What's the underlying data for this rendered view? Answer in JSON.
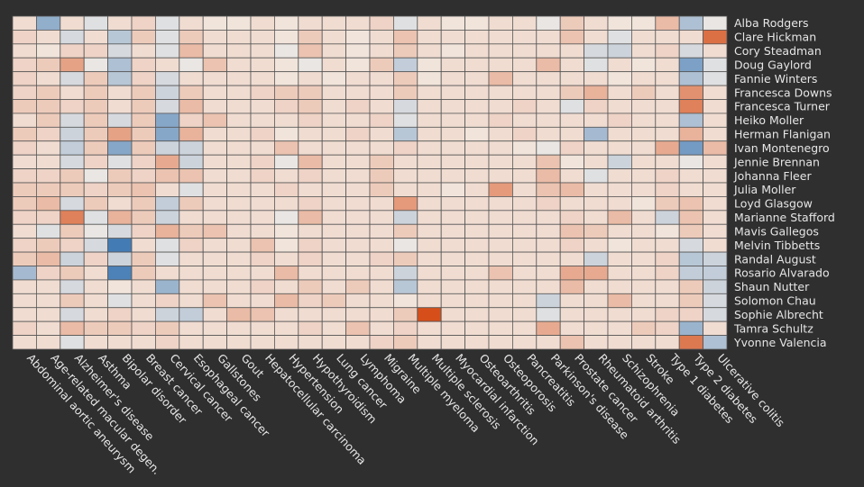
{
  "chart_data": {
    "type": "heatmap",
    "title": "",
    "xlabel": "",
    "ylabel": "",
    "legend": "none",
    "grid": true,
    "value_range": [
      -1,
      1
    ],
    "colors": {
      "background": "#2f2f2f",
      "grid_line": "#555555",
      "label": "#e6e6e6",
      "negative_strong": "#2f6fb0",
      "neutral": "#f3ece6",
      "positive_strong": "#d4470f"
    },
    "columns": [
      "Abdominal aortic aneurysm",
      "Age-related macular degen.",
      "Alzheimer's disease",
      "Asthma",
      "Bipolar disorder",
      "Breast cancer",
      "Cervical cancer",
      "Esophageal cancer",
      "Gallstones",
      "Gout",
      "Hepatocellular carcinoma",
      "Hypertension",
      "Hypothyroidism",
      "Lung cancer",
      "Lymphoma",
      "Migraine",
      "Multiple myeloma",
      "Multiple sclerosis",
      "Myocardial infarction",
      "Osteoarthritis",
      "Osteoporosis",
      "Pancreatitis",
      "Parkinson's disease",
      "Prostate cancer",
      "Rheumatoid arthritis",
      "Schizophrenia",
      "Stroke",
      "Type 1 diabetes",
      "Type 2 diabetes",
      "Ulcerative colitis"
    ],
    "rows": [
      "Alba Rodgers",
      "Clare Hickman",
      "Cory Steadman",
      "Doug Gaylord",
      "Fannie Winters",
      "Francesca Downs",
      "Francesca Turner",
      "Heiko Moller",
      "Herman Flanigan",
      "Ivan Montenegro",
      "Jennie Brennan",
      "Johanna Fleer",
      "Julia Moller",
      "Loyd Glasgow",
      "Marianne Stafford",
      "Mavis Gallegos",
      "Melvin Tibbetts",
      "Randal August",
      "Rosario Alvarado",
      "Shaun Nutter",
      "Solomon Chau",
      "Sophie Albrecht",
      "Tamra Schultz",
      "Yvonne Valencia"
    ],
    "values": [
      [
        0.1,
        -0.5,
        0.1,
        -0.1,
        0.1,
        0.15,
        -0.1,
        0.1,
        0.05,
        0.05,
        0.1,
        0.05,
        0.1,
        0.1,
        0.1,
        0.15,
        -0.1,
        0.1,
        0.05,
        0.05,
        0.1,
        0.1,
        -0.05,
        0.2,
        0.1,
        0.05,
        0.05,
        0.3,
        -0.35,
        -0.05
      ],
      [
        0.15,
        0.1,
        -0.15,
        0.1,
        -0.3,
        0.2,
        -0.1,
        0.2,
        0.1,
        0.1,
        0.1,
        0.05,
        0.2,
        0.1,
        0.05,
        0.1,
        0.25,
        0.1,
        0.1,
        0.1,
        0.1,
        0.1,
        0.1,
        0.25,
        0.1,
        -0.1,
        0.1,
        0.1,
        0.1,
        0.75
      ],
      [
        0.1,
        0.05,
        0.15,
        0.15,
        -0.15,
        0.1,
        -0.1,
        0.3,
        0.1,
        0.1,
        0.1,
        -0.05,
        0.25,
        0.1,
        0.05,
        0.1,
        0.2,
        0.1,
        0.05,
        0.1,
        0.1,
        0.1,
        0.1,
        0.1,
        -0.15,
        -0.2,
        0.1,
        0.15,
        -0.15,
        0.1
      ],
      [
        0.15,
        0.2,
        0.45,
        -0.05,
        -0.35,
        0.15,
        0.1,
        -0.05,
        0.25,
        0.1,
        0.1,
        0.05,
        -0.05,
        0.1,
        0.05,
        0.2,
        -0.25,
        0.05,
        0.1,
        0.1,
        0.1,
        0.1,
        0.3,
        0.1,
        -0.1,
        0.1,
        0.05,
        0.1,
        -0.6,
        -0.1
      ],
      [
        0.15,
        0.1,
        -0.15,
        0.2,
        -0.3,
        0.15,
        -0.15,
        0.1,
        0.1,
        0.1,
        0.1,
        0.05,
        0.1,
        0.05,
        0.1,
        0.1,
        0.2,
        0.05,
        0.1,
        0.1,
        0.3,
        0.1,
        0.1,
        0.1,
        0.1,
        0.05,
        0.1,
        0.1,
        -0.35,
        -0.1
      ],
      [
        0.15,
        0.2,
        0.1,
        0.2,
        0.1,
        0.2,
        -0.2,
        0.2,
        0.1,
        0.1,
        0.15,
        0.2,
        0.2,
        0.1,
        0.1,
        0.1,
        0.2,
        0.1,
        0.1,
        0.1,
        0.1,
        0.1,
        0.1,
        0.2,
        0.35,
        0.1,
        0.2,
        0.1,
        0.55,
        0.1
      ],
      [
        0.2,
        0.2,
        0.15,
        0.2,
        0.1,
        0.2,
        -0.15,
        0.3,
        0.1,
        0.1,
        0.1,
        0.15,
        0.2,
        0.1,
        0.15,
        0.1,
        -0.15,
        0.1,
        0.1,
        0.1,
        0.1,
        0.15,
        0.1,
        -0.1,
        0.15,
        0.1,
        0.1,
        0.1,
        0.65,
        0.1
      ],
      [
        0.1,
        0.2,
        -0.15,
        0.2,
        -0.15,
        0.2,
        -0.55,
        0.15,
        0.25,
        0.1,
        0.1,
        0.1,
        0.15,
        0.1,
        0.1,
        0.15,
        -0.1,
        0.1,
        0.1,
        0.1,
        0.15,
        0.1,
        0.1,
        0.1,
        0.1,
        0.15,
        0.1,
        0.1,
        -0.35,
        0.1
      ],
      [
        0.2,
        0.15,
        -0.2,
        0.2,
        0.45,
        0.2,
        -0.55,
        0.35,
        0.1,
        0.1,
        0.15,
        0.05,
        0.1,
        0.1,
        0.15,
        0.1,
        -0.3,
        0.1,
        0.1,
        0.05,
        0.1,
        0.15,
        0.1,
        0.1,
        -0.4,
        0.1,
        0.1,
        0.1,
        0.35,
        0.1
      ],
      [
        0.15,
        0.1,
        -0.25,
        0.2,
        -0.55,
        0.2,
        -0.2,
        -0.2,
        0.1,
        0.1,
        0.1,
        0.25,
        0.1,
        0.1,
        0.1,
        0.1,
        0.15,
        0.1,
        0.1,
        0.1,
        0.1,
        0.05,
        -0.05,
        0.15,
        0.1,
        0.1,
        0.1,
        0.4,
        -0.65,
        0.3
      ],
      [
        0.1,
        0.1,
        -0.15,
        0.15,
        -0.1,
        0.15,
        0.4,
        -0.2,
        0.1,
        0.1,
        0.15,
        -0.05,
        0.3,
        0.1,
        0.1,
        0.2,
        0.1,
        0.1,
        0.1,
        0.1,
        0.1,
        0.1,
        0.25,
        0.05,
        0.1,
        -0.2,
        0.1,
        0.1,
        -0.05,
        0.1
      ],
      [
        0.15,
        0.15,
        0.2,
        -0.05,
        0.2,
        0.15,
        0.25,
        0.25,
        0.1,
        0.1,
        0.15,
        0.1,
        0.15,
        0.1,
        0.1,
        0.2,
        0.1,
        0.1,
        0.1,
        0.1,
        0.1,
        0.1,
        0.3,
        0.1,
        -0.1,
        0.1,
        0.1,
        0.15,
        0.1,
        0.1
      ],
      [
        0.2,
        0.2,
        0.2,
        0.15,
        0.2,
        0.25,
        0.1,
        -0.1,
        0.1,
        0.1,
        0.1,
        0.15,
        0.1,
        0.1,
        0.1,
        0.2,
        0.1,
        0.1,
        0.05,
        0.1,
        0.5,
        0.1,
        0.25,
        0.3,
        0.1,
        0.1,
        0.1,
        0.15,
        0.1,
        0.1
      ],
      [
        0.2,
        0.3,
        -0.15,
        0.2,
        0.1,
        0.2,
        -0.25,
        0.2,
        0.1,
        0.1,
        0.1,
        0.1,
        0.15,
        0.1,
        0.1,
        0.1,
        0.5,
        0.1,
        0.1,
        0.1,
        0.1,
        0.1,
        0.15,
        0.1,
        0.1,
        0.1,
        0.05,
        0.2,
        0.25,
        0.1
      ],
      [
        0.15,
        0.15,
        0.65,
        -0.1,
        0.35,
        0.2,
        -0.2,
        0.1,
        0.1,
        0.1,
        0.1,
        -0.05,
        0.3,
        0.1,
        0.1,
        0.1,
        -0.2,
        0.1,
        0.1,
        0.1,
        0.1,
        0.1,
        0.1,
        0.15,
        0.1,
        0.3,
        0.1,
        -0.2,
        0.25,
        0.1
      ],
      [
        0.1,
        -0.1,
        0.2,
        -0.05,
        -0.15,
        0.15,
        0.35,
        0.2,
        0.25,
        0.1,
        0.1,
        0.05,
        0.1,
        0.1,
        0.1,
        0.1,
        0.2,
        0.1,
        0.1,
        0.1,
        0.1,
        0.1,
        0.1,
        0.25,
        0.2,
        0.1,
        0.1,
        0.05,
        0.2,
        0.1
      ],
      [
        0.15,
        0.2,
        0.15,
        -0.15,
        -0.9,
        0.1,
        -0.1,
        0.15,
        0.1,
        0.1,
        0.25,
        0.05,
        0.15,
        0.1,
        0.1,
        0.1,
        -0.05,
        0.1,
        0.1,
        0.1,
        0.1,
        0.1,
        0.1,
        0.15,
        0.1,
        0.05,
        0.1,
        0.1,
        -0.15,
        0.1
      ],
      [
        0.2,
        0.3,
        -0.2,
        0.15,
        -0.2,
        0.2,
        -0.1,
        0.1,
        0.1,
        0.1,
        0.15,
        0.1,
        0.15,
        0.1,
        0.1,
        0.15,
        0.2,
        0.1,
        0.1,
        0.1,
        0.1,
        0.1,
        0.1,
        0.1,
        -0.2,
        0.1,
        0.1,
        0.15,
        -0.3,
        -0.2
      ],
      [
        -0.4,
        0.15,
        0.2,
        0.1,
        -0.85,
        0.2,
        0.1,
        0.1,
        0.1,
        0.1,
        0.1,
        0.3,
        0.1,
        0.1,
        0.1,
        0.1,
        -0.2,
        0.1,
        0.1,
        0.1,
        0.25,
        0.1,
        0.1,
        0.4,
        0.4,
        0.1,
        0.1,
        0.15,
        -0.25,
        -0.25
      ],
      [
        0.1,
        0.1,
        -0.15,
        0.1,
        0.05,
        0.1,
        -0.45,
        0.1,
        0.1,
        0.1,
        0.15,
        0.1,
        0.2,
        0.1,
        0.2,
        0.1,
        -0.3,
        0.1,
        0.1,
        0.1,
        0.1,
        0.1,
        0.1,
        0.3,
        0.1,
        0.1,
        0.1,
        0.1,
        0.2,
        -0.2
      ],
      [
        0.1,
        0.1,
        0.2,
        0.1,
        -0.1,
        0.1,
        0.15,
        0.1,
        0.25,
        0.1,
        0.1,
        0.3,
        0.15,
        0.2,
        0.1,
        0.1,
        0.05,
        0.1,
        0.1,
        0.1,
        0.1,
        0.1,
        -0.2,
        0.1,
        0.1,
        0.3,
        0.1,
        0.1,
        0.2,
        -0.15
      ],
      [
        0.1,
        0.1,
        -0.15,
        0.1,
        0.15,
        0.1,
        -0.2,
        -0.25,
        0.1,
        0.3,
        0.25,
        0.1,
        0.1,
        0.1,
        0.1,
        0.1,
        0.2,
        0.95,
        0.1,
        0.1,
        0.1,
        0.1,
        -0.1,
        0.1,
        0.1,
        0.1,
        0.1,
        0.15,
        0.15,
        -0.15
      ],
      [
        0.15,
        0.1,
        0.3,
        0.2,
        0.2,
        0.15,
        0.2,
        0.1,
        0.1,
        0.1,
        0.1,
        0.1,
        0.15,
        0.1,
        0.25,
        0.1,
        0.15,
        0.1,
        0.1,
        0.1,
        0.1,
        0.1,
        0.4,
        0.1,
        0.1,
        0.1,
        0.2,
        0.15,
        -0.45,
        0.1
      ],
      [
        0.1,
        0.1,
        -0.1,
        0.1,
        0.1,
        0.1,
        0.15,
        0.1,
        0.1,
        0.1,
        0.1,
        0.1,
        0.1,
        0.1,
        0.1,
        0.15,
        0.2,
        0.1,
        0.1,
        0.1,
        0.1,
        0.1,
        0.1,
        0.25,
        0.1,
        0.1,
        0.1,
        0.1,
        0.7,
        -0.35
      ]
    ]
  }
}
